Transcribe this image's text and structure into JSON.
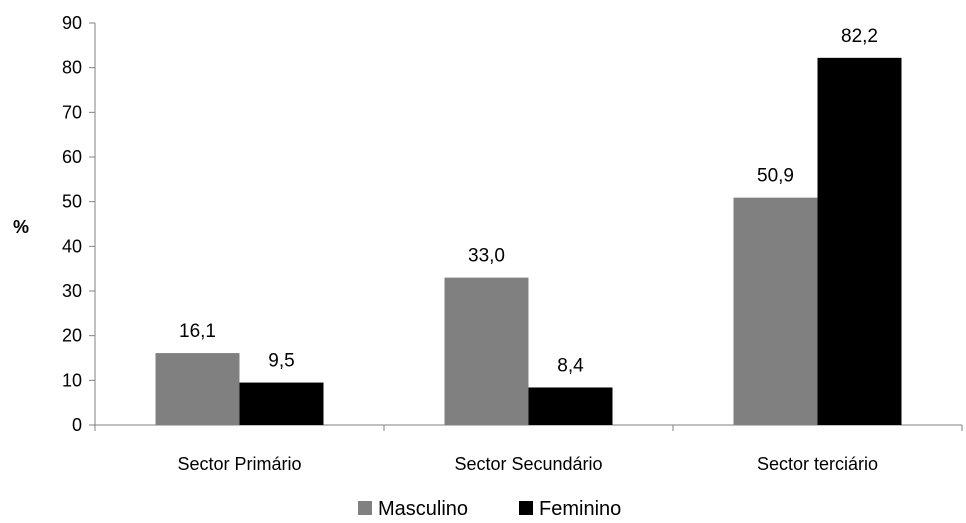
{
  "chart_data": {
    "type": "bar",
    "categories": [
      "Sector Primário",
      "Sector Secundário",
      "Sector terciário"
    ],
    "series": [
      {
        "name": "Masculino",
        "values": [
          16.1,
          33.0,
          50.9
        ],
        "labels": [
          "16,1",
          "33,0",
          "50,9"
        ],
        "color": "#808080"
      },
      {
        "name": "Feminino",
        "values": [
          9.5,
          8.4,
          82.2
        ],
        "labels": [
          "9,5",
          "8,4",
          "82,2"
        ],
        "color": "#000000"
      }
    ],
    "ylabel": "%",
    "ylim": [
      0,
      90
    ],
    "yticks": [
      "0",
      "10",
      "20",
      "30",
      "40",
      "50",
      "60",
      "70",
      "80",
      "90"
    ],
    "grid": false,
    "legend_position": "bottom"
  }
}
